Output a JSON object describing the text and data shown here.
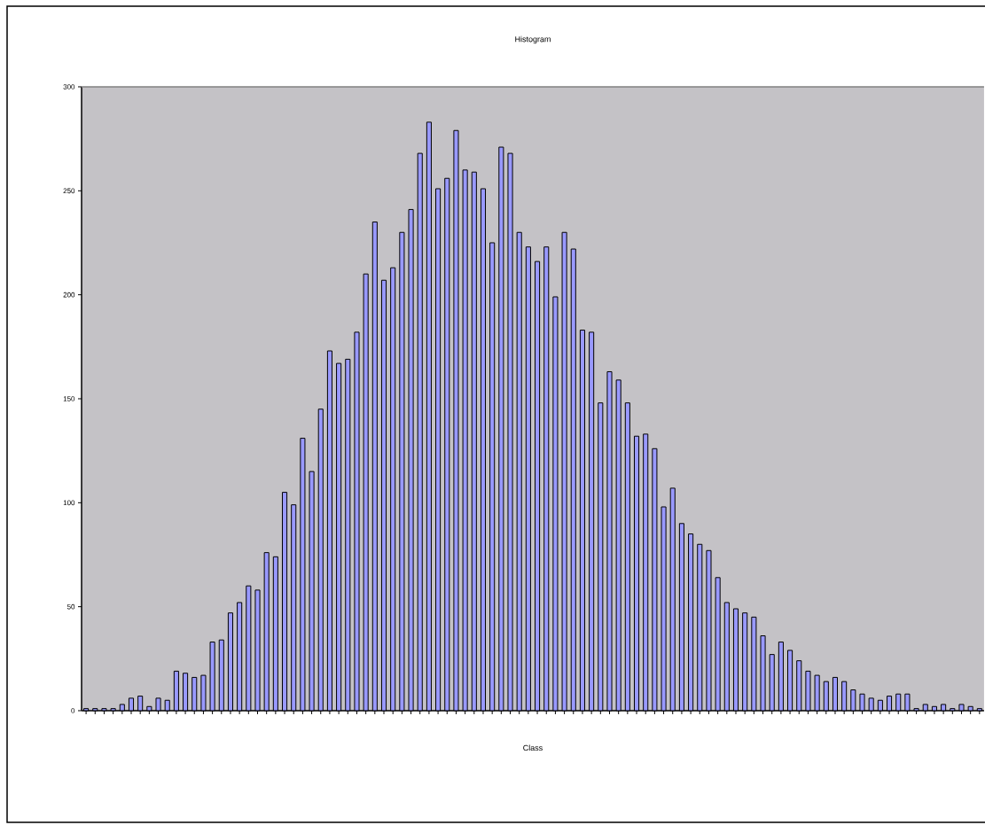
{
  "chart_data": {
    "type": "bar",
    "title": "Histogram",
    "xlabel": "Class",
    "categories": [
      null,
      null,
      null,
      null,
      null,
      null,
      null,
      null,
      null,
      null,
      null,
      null,
      null,
      null,
      null,
      null,
      null,
      null,
      null,
      null,
      null,
      null,
      null,
      null,
      null,
      null,
      null,
      null,
      null,
      null,
      null,
      null,
      null,
      null,
      null,
      null,
      null,
      null,
      null,
      null,
      null,
      null,
      null,
      null,
      null,
      null,
      null,
      null,
      null,
      null,
      null,
      null,
      null,
      null,
      null,
      null,
      null,
      null,
      null,
      null,
      null,
      null,
      null,
      null,
      null,
      null,
      null,
      null,
      null,
      null,
      null,
      null,
      null,
      null,
      null,
      null,
      null,
      null,
      null,
      null,
      null,
      null,
      null,
      null,
      null,
      null,
      null,
      null,
      null,
      null,
      null,
      null,
      null,
      null,
      null,
      null,
      null,
      null,
      null,
      null
    ],
    "values": [
      1,
      1,
      1,
      1,
      3,
      6,
      7,
      2,
      6,
      5,
      19,
      18,
      16,
      17,
      33,
      34,
      47,
      52,
      60,
      58,
      76,
      74,
      105,
      99,
      131,
      115,
      145,
      173,
      167,
      169,
      182,
      210,
      235,
      207,
      213,
      230,
      241,
      268,
      283,
      251,
      256,
      279,
      260,
      259,
      251,
      225,
      271,
      268,
      230,
      223,
      216,
      223,
      199,
      230,
      222,
      183,
      182,
      148,
      163,
      159,
      148,
      132,
      133,
      126,
      98,
      107,
      90,
      85,
      80,
      77,
      64,
      52,
      49,
      47,
      45,
      36,
      27,
      33,
      29,
      24,
      19,
      17,
      14,
      16,
      14,
      10,
      8,
      6,
      5,
      7,
      8,
      8,
      1,
      3,
      2,
      3,
      1,
      3,
      2,
      1
    ],
    "color": "#9999ff",
    "ylim": [
      0,
      300
    ],
    "yticks": [
      0,
      50,
      100,
      150,
      200,
      250,
      300
    ],
    "tick_labels": "y"
  }
}
